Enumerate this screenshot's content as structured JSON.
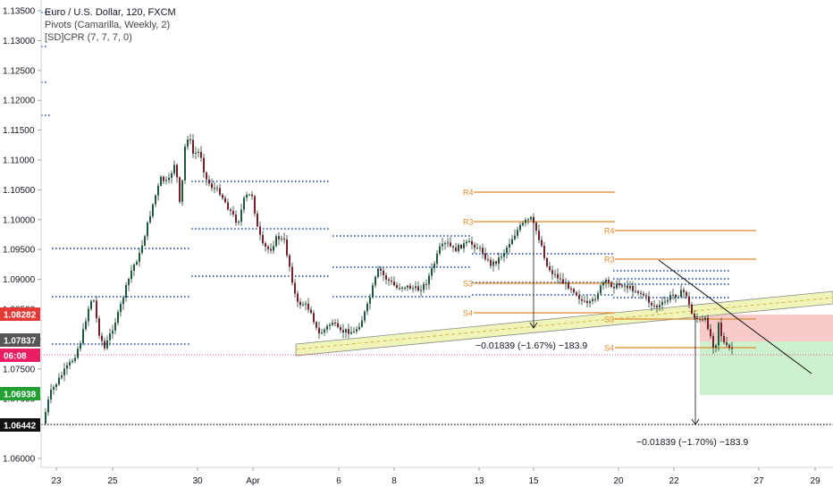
{
  "chart_data": {
    "type": "candlestick",
    "title": "Euro / U.S. Dollar, 120, FXCM",
    "indicators": [
      "Pivots (Camarilla, Weekly, 2)",
      "[SD]CPR (7, 7, 7, 0)"
    ],
    "colors": {
      "up": "#26a69a",
      "down": "#ef5350",
      "candle_body": "#1e3a2a",
      "pivot_dots": "#1f4fa8",
      "pivot_levels": "#e08a2c",
      "channel": "#f0f4b8",
      "target_zone": "#c8eec8",
      "stop_zone": "#f8c4c4"
    },
    "y_axis": {
      "ylim": [
        1.0585,
        1.1368
      ],
      "ticks": [
        "1.13500",
        "1.13000",
        "1.12500",
        "1.12000",
        "1.11500",
        "1.11000",
        "1.10500",
        "1.10000",
        "1.09500",
        "1.09000",
        "1.08500",
        "1.08000",
        "1.07500",
        "1.07000",
        "1.06500",
        "1.06000"
      ]
    },
    "x_axis": {
      "ticks": [
        "23",
        "25",
        "30",
        "Apr",
        "6",
        "8",
        "13",
        "15",
        "20",
        "22",
        "27",
        "29"
      ]
    },
    "price_labels": [
      {
        "value": "1.08282",
        "color": "#e53935"
      },
      {
        "value": "1.07837",
        "color": "#555555"
      },
      {
        "value": "06:08",
        "color": "#e91e63"
      },
      {
        "value": "1.06938",
        "color": "#23a034"
      },
      {
        "value": "1.06442",
        "color": "#111111"
      }
    ],
    "pivot_labels": [
      "R4",
      "R3",
      "S3",
      "S4",
      "R4",
      "R3",
      "S3",
      "S4"
    ],
    "measurements": [
      "−0.01839 (−1.67%) −183.9",
      "−0.01839 (−1.70%) −183.9"
    ]
  }
}
